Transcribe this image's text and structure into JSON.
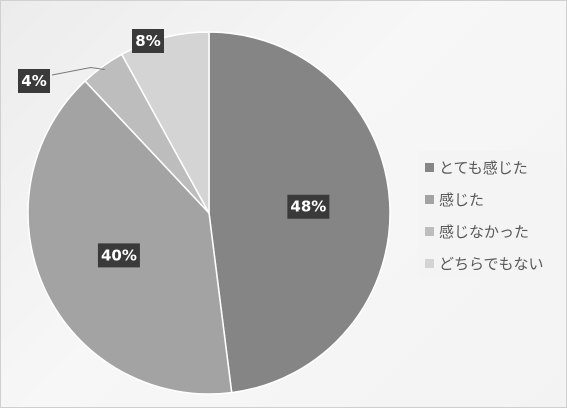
{
  "chart_data": {
    "type": "pie",
    "categories": [
      "とても感じた",
      "感じた",
      "感じなかった",
      "どちらでもない"
    ],
    "values": [
      48,
      40,
      4,
      8
    ],
    "data_labels": [
      "48%",
      "40%",
      "4%",
      "8%"
    ],
    "colors": [
      "#858585",
      "#a3a3a3",
      "#bdbdbd",
      "#d4d4d4"
    ],
    "start_angle_deg": 0,
    "direction": "clockwise",
    "legend": "right",
    "title": ""
  }
}
